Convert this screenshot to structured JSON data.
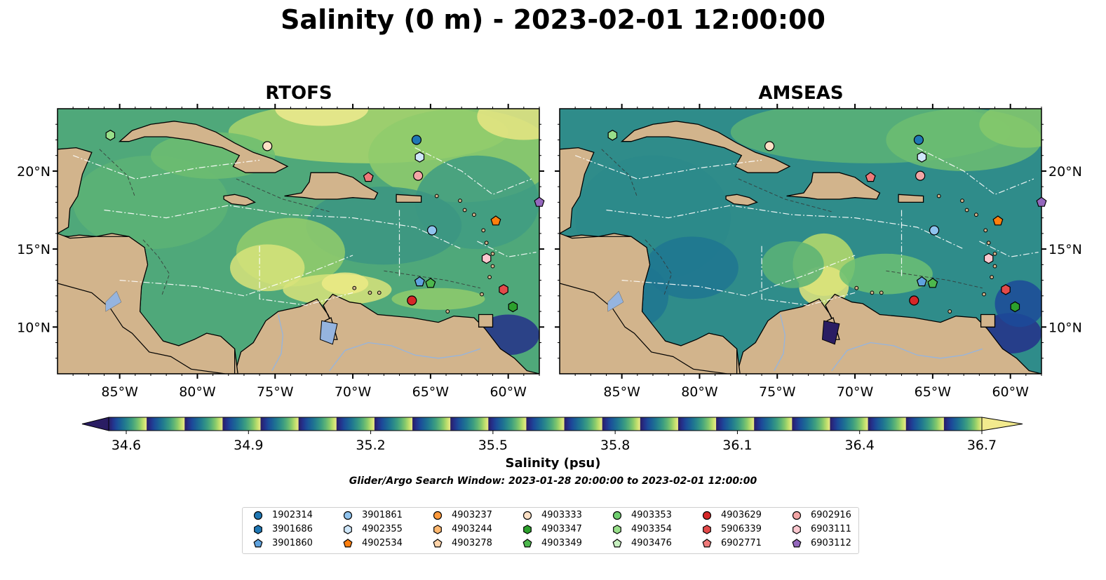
{
  "title": "Salinity (0 m) - 2023-02-01 12:00:00",
  "panels": [
    {
      "title": "RTOFS"
    },
    {
      "title": "AMSEAS"
    }
  ],
  "axes": {
    "lon_ticks": [
      "85°W",
      "80°W",
      "75°W",
      "70°W",
      "65°W",
      "60°W"
    ],
    "lat_ticks": [
      "20°N",
      "15°N",
      "10°N"
    ],
    "lon_range": [
      -89,
      -58
    ],
    "lat_range": [
      7,
      24
    ]
  },
  "colorbar": {
    "label": "Salinity (psu)",
    "ticks": [
      "34.6",
      "34.9",
      "35.2",
      "35.5",
      "35.8",
      "36.1",
      "36.4",
      "36.7"
    ],
    "range": [
      34.6,
      36.7
    ],
    "extend": "both",
    "colors": [
      "#2a1d63",
      "#24308a",
      "#1c4a99",
      "#1b6096",
      "#1f7591",
      "#2b8a8a",
      "#3d9e80",
      "#5cb376",
      "#86c96b",
      "#c0df6c",
      "#f2ea8e"
    ]
  },
  "colors": {
    "land": "#d2b48c",
    "water_pacific_rtofs": "#2a1d63",
    "water_pacific_amseas": "#95b4df",
    "ocean_base_rtofs": "#4fa87a",
    "ocean_base_amseas": "#2f8c8a"
  },
  "search_window": "Glider/Argo Search Window: 2023-01-28 20:00:00 to 2023-02-01 12:00:00",
  "platforms": [
    {
      "id": "1902314",
      "marker": "circle",
      "color": "#1f77b4",
      "lon": -65.9,
      "lat": 22.0
    },
    {
      "id": "3901686",
      "marker": "hexagon",
      "color": "#1f77b4",
      "lon": -58.0,
      "lat": 18.8,
      "hidden": true
    },
    {
      "id": "3901860",
      "marker": "pentagon",
      "color": "#5fa2dd",
      "lon": -65.7,
      "lat": 12.9
    },
    {
      "id": "3901861",
      "marker": "circle",
      "color": "#8fc3ee",
      "lon": -64.9,
      "lat": 16.2
    },
    {
      "id": "4902355",
      "marker": "hexagon",
      "color": "#cfe7fa",
      "lon": -65.7,
      "lat": 20.9
    },
    {
      "id": "4902534",
      "marker": "pentagon",
      "color": "#ff7f0e",
      "lon": -60.8,
      "lat": 16.8
    },
    {
      "id": "4903237",
      "marker": "circle",
      "color": "#ff9a3c",
      "lon": -60.0,
      "lat": 17.0,
      "hidden": true
    },
    {
      "id": "4903244",
      "marker": "hexagon",
      "color": "#ffb870",
      "lon": -60.0,
      "lat": 17.0,
      "hidden": true
    },
    {
      "id": "4903278",
      "marker": "pentagon",
      "color": "#ffd3a8",
      "lon": -60.0,
      "lat": 17.0,
      "hidden": true
    },
    {
      "id": "4903333",
      "marker": "circle",
      "color": "#fde0c5",
      "lon": -75.5,
      "lat": 21.6
    },
    {
      "id": "4903347",
      "marker": "hexagon",
      "color": "#2ca02c",
      "lon": -59.7,
      "lat": 11.3
    },
    {
      "id": "4903349",
      "marker": "pentagon",
      "color": "#4db84d",
      "lon": -65.0,
      "lat": 12.8
    },
    {
      "id": "4903353",
      "marker": "circle",
      "color": "#6fce6f",
      "lon": -60.0,
      "lat": 17.0,
      "hidden": true
    },
    {
      "id": "4903354",
      "marker": "hexagon",
      "color": "#98df8a",
      "lon": -85.6,
      "lat": 22.3
    },
    {
      "id": "4903476",
      "marker": "pentagon",
      "color": "#c7f0c0",
      "lon": -60.0,
      "lat": 17.0,
      "hidden": true
    },
    {
      "id": "4903629",
      "marker": "circle",
      "color": "#d62728",
      "lon": -66.2,
      "lat": 11.7
    },
    {
      "id": "5906339",
      "marker": "hexagon",
      "color": "#e34a4a",
      "lon": -60.3,
      "lat": 12.4
    },
    {
      "id": "6902771",
      "marker": "pentagon",
      "color": "#f07a7a",
      "lon": -69.0,
      "lat": 19.6
    },
    {
      "id": "6902916",
      "marker": "circle",
      "color": "#f4a6a6",
      "lon": -65.8,
      "lat": 19.7
    },
    {
      "id": "6903111",
      "marker": "hexagon",
      "color": "#fbc8cf",
      "lon": -61.4,
      "lat": 14.4
    },
    {
      "id": "6903112",
      "marker": "pentagon",
      "color": "#9467bd",
      "lon": -58.0,
      "lat": 18.0
    }
  ]
}
